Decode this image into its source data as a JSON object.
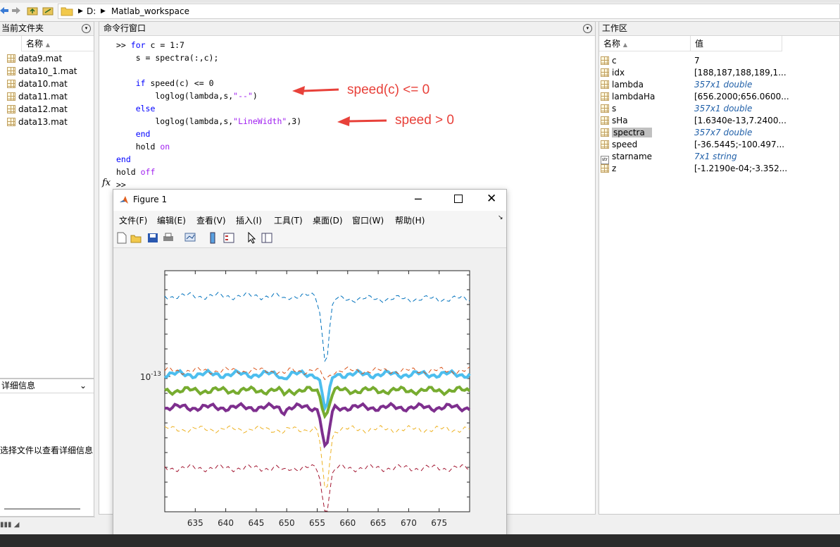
{
  "toolbar": {
    "path": [
      "D:",
      "Matlab_workspace"
    ]
  },
  "current_folder": {
    "title": "当前文件夹",
    "name_header": "名称",
    "files": [
      "data9.mat",
      "data10_1.mat",
      "data10.mat",
      "data11.mat",
      "data12.mat",
      "data13.mat"
    ]
  },
  "details": {
    "title": "详细信息",
    "message": "选择文件以查看详细信息"
  },
  "command_window": {
    "title": "命令行窗口",
    "prompt": ">>",
    "fx": "fx",
    "annotation1": "speed(c) <= 0",
    "annotation2": "speed > 0"
  },
  "workspace": {
    "title": "工作区",
    "name_header": "名称",
    "value_header": "值",
    "variables": [
      {
        "name": "c",
        "value": "7",
        "icon": "grid-icon",
        "italic": false
      },
      {
        "name": "idx",
        "value": "[188,187,188,189,1...",
        "icon": "grid-icon",
        "italic": false
      },
      {
        "name": "lambda",
        "value": "357x1 double",
        "icon": "grid-icon",
        "italic": true
      },
      {
        "name": "lambdaHa",
        "value": "[656.2000;656.0600...",
        "icon": "grid-icon",
        "italic": false
      },
      {
        "name": "s",
        "value": "357x1 double",
        "icon": "grid-icon",
        "italic": true
      },
      {
        "name": "sHa",
        "value": "[1.6340e-13,7.2400...",
        "icon": "grid-icon",
        "italic": false
      },
      {
        "name": "spectra",
        "value": "357x7 double",
        "icon": "grid-icon",
        "italic": true,
        "selected": true
      },
      {
        "name": "speed",
        "value": "[-36.5445;-100.497...",
        "icon": "grid-icon",
        "italic": false
      },
      {
        "name": "starname",
        "value": "7x1 string",
        "icon": "string-icon",
        "italic": true
      },
      {
        "name": "z",
        "value": "[-1.2190e-04;-3.352...",
        "icon": "grid-icon",
        "italic": false
      }
    ]
  },
  "figure": {
    "title": "Figure 1",
    "menu": [
      "文件(F)",
      "编辑(E)",
      "查看(V)",
      "插入(I)",
      "工具(T)",
      "桌面(D)",
      "窗口(W)",
      "帮助(H)"
    ]
  },
  "chart_data": {
    "type": "line",
    "title": "",
    "xlabel": "",
    "ylabel": "",
    "xlim": [
      630,
      680
    ],
    "x_ticks": [
      635,
      640,
      645,
      650,
      655,
      660,
      665,
      670,
      675
    ],
    "y_scale": "log",
    "y_tick_label": "10^-13",
    "grid": false,
    "series": [
      {
        "style": "dashed",
        "color": "#0072bd",
        "offset": 1.9,
        "depth": 1.1
      },
      {
        "style": "solid-thick",
        "color": "#4dbeee",
        "offset": 1.35,
        "depth": 0.7
      },
      {
        "style": "dashed",
        "color": "#d95319",
        "offset": 1.15,
        "depth": 0.25
      },
      {
        "style": "solid-thick",
        "color": "#77ac30",
        "offset": 1.05,
        "depth": 0.55
      },
      {
        "style": "solid-thick",
        "color": "#7e2f8e",
        "offset": 0.9,
        "depth": 0.7
      },
      {
        "style": "dashed",
        "color": "#edb120",
        "offset": 0.55,
        "depth": 0.8
      },
      {
        "style": "dashed",
        "color": "#a2142f",
        "offset": 0.3,
        "depth": 0.9
      }
    ]
  },
  "colors": {
    "accent": "#0072bd",
    "annotation": "#e8413a",
    "selection": "#c0c0c0"
  }
}
